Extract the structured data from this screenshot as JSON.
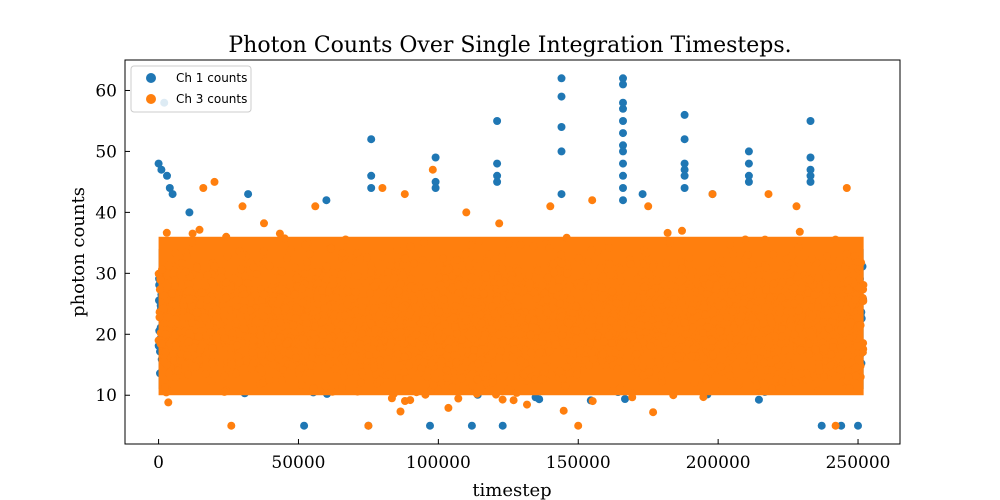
{
  "chart_data": {
    "type": "scatter",
    "title": "Photon Counts Over Single Integration Timesteps.",
    "xlabel": "timestep",
    "ylabel": "photon counts",
    "xlim": [
      -12000,
      265000
    ],
    "ylim": [
      2,
      65
    ],
    "x_ticks": [
      0,
      50000,
      100000,
      150000,
      200000,
      250000
    ],
    "y_ticks": [
      10,
      20,
      30,
      40,
      50,
      60
    ],
    "x_range_data": [
      0,
      252000
    ],
    "grid": false,
    "legend": "top-left",
    "series": [
      {
        "name": "Ch 1 counts",
        "color": "#1f77b4",
        "band": [
          8,
          36
        ],
        "outliers": [
          {
            "x": 0,
            "y": 48
          },
          {
            "x": 1000,
            "y": 47
          },
          {
            "x": 2000,
            "y": 58
          },
          {
            "x": 3000,
            "y": 46
          },
          {
            "x": 4000,
            "y": 44
          },
          {
            "x": 5000,
            "y": 43
          },
          {
            "x": 11000,
            "y": 40
          },
          {
            "x": 32000,
            "y": 43
          },
          {
            "x": 76000,
            "y": 52
          },
          {
            "x": 76000,
            "y": 46
          },
          {
            "x": 76000,
            "y": 44
          },
          {
            "x": 99000,
            "y": 49
          },
          {
            "x": 99000,
            "y": 45
          },
          {
            "x": 99000,
            "y": 44
          },
          {
            "x": 121000,
            "y": 55
          },
          {
            "x": 121000,
            "y": 48
          },
          {
            "x": 121000,
            "y": 46
          },
          {
            "x": 121000,
            "y": 45
          },
          {
            "x": 144000,
            "y": 62
          },
          {
            "x": 144000,
            "y": 59
          },
          {
            "x": 144000,
            "y": 54
          },
          {
            "x": 144000,
            "y": 50
          },
          {
            "x": 144000,
            "y": 43
          },
          {
            "x": 166000,
            "y": 62
          },
          {
            "x": 166000,
            "y": 61
          },
          {
            "x": 166000,
            "y": 58
          },
          {
            "x": 166000,
            "y": 57
          },
          {
            "x": 166000,
            "y": 55
          },
          {
            "x": 166000,
            "y": 53
          },
          {
            "x": 166000,
            "y": 51
          },
          {
            "x": 166000,
            "y": 50
          },
          {
            "x": 166000,
            "y": 48
          },
          {
            "x": 166000,
            "y": 46
          },
          {
            "x": 166000,
            "y": 44
          },
          {
            "x": 166000,
            "y": 42
          },
          {
            "x": 188000,
            "y": 56
          },
          {
            "x": 188000,
            "y": 52
          },
          {
            "x": 188000,
            "y": 48
          },
          {
            "x": 188000,
            "y": 47
          },
          {
            "x": 188000,
            "y": 46
          },
          {
            "x": 188000,
            "y": 44
          },
          {
            "x": 211000,
            "y": 50
          },
          {
            "x": 211000,
            "y": 48
          },
          {
            "x": 211000,
            "y": 46
          },
          {
            "x": 211000,
            "y": 45
          },
          {
            "x": 233000,
            "y": 55
          },
          {
            "x": 233000,
            "y": 49
          },
          {
            "x": 233000,
            "y": 47
          },
          {
            "x": 233000,
            "y": 46
          },
          {
            "x": 233000,
            "y": 45
          },
          {
            "x": 60000,
            "y": 42
          },
          {
            "x": 173000,
            "y": 43
          },
          {
            "x": 198000,
            "y": 43
          },
          {
            "x": 52000,
            "y": 5
          },
          {
            "x": 75000,
            "y": 5
          },
          {
            "x": 97000,
            "y": 5
          },
          {
            "x": 112000,
            "y": 5
          },
          {
            "x": 123000,
            "y": 5
          },
          {
            "x": 237000,
            "y": 5
          },
          {
            "x": 244000,
            "y": 5
          },
          {
            "x": 250000,
            "y": 5
          }
        ]
      },
      {
        "name": "Ch 3 counts",
        "color": "#ff7f0e",
        "band": [
          7,
          38
        ],
        "outliers": [
          {
            "x": 16000,
            "y": 44
          },
          {
            "x": 20000,
            "y": 45
          },
          {
            "x": 80000,
            "y": 44
          },
          {
            "x": 98000,
            "y": 47
          },
          {
            "x": 88000,
            "y": 43
          },
          {
            "x": 198000,
            "y": 43
          },
          {
            "x": 218000,
            "y": 43
          },
          {
            "x": 246000,
            "y": 44
          },
          {
            "x": 30000,
            "y": 41
          },
          {
            "x": 56000,
            "y": 41
          },
          {
            "x": 110000,
            "y": 40
          },
          {
            "x": 140000,
            "y": 41
          },
          {
            "x": 155000,
            "y": 42
          },
          {
            "x": 175000,
            "y": 41
          },
          {
            "x": 228000,
            "y": 41
          },
          {
            "x": 150000,
            "y": 5
          },
          {
            "x": 26000,
            "y": 5
          },
          {
            "x": 75000,
            "y": 5
          },
          {
            "x": 242000,
            "y": 5
          }
        ]
      }
    ]
  }
}
